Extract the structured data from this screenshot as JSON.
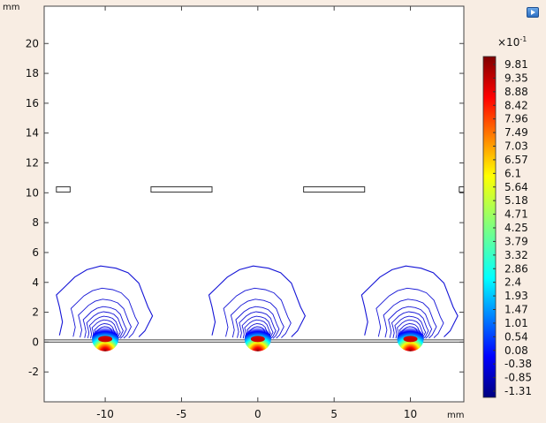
{
  "toolbar": {
    "export_icon": "export-image-icon"
  },
  "chart_data": {
    "type": "contour",
    "x_unit": "mm",
    "y_unit": "mm",
    "xlim": [
      -14,
      13.5
    ],
    "ylim": [
      -4,
      22.5
    ],
    "x_ticks": [
      -10,
      -5,
      0,
      5,
      10
    ],
    "y_ticks": [
      -2,
      0,
      2,
      4,
      6,
      8,
      10,
      12,
      14,
      16,
      18,
      20
    ],
    "colorbar": {
      "multiplier": "×10",
      "exponent": "-1",
      "min": -1.31,
      "max": 9.81,
      "tick_labels": [
        "9.81",
        "9.35",
        "8.88",
        "8.42",
        "7.96",
        "7.49",
        "7.03",
        "6.57",
        "6.1",
        "5.64",
        "5.18",
        "4.71",
        "4.25",
        "3.79",
        "3.32",
        "2.86",
        "2.4",
        "1.93",
        "1.47",
        "1.01",
        "0.54",
        "0.08",
        "-0.38",
        "-0.85",
        "-1.31"
      ]
    },
    "sources_x": [
      -10,
      0,
      10
    ],
    "electrodes": [
      {
        "x0": -13.2,
        "x1": -12.3,
        "y0": 10.05,
        "y1": 10.4
      },
      {
        "x0": -7,
        "x1": -3,
        "y0": 10.05,
        "y1": 10.4
      },
      {
        "x0": 3,
        "x1": 7,
        "y0": 10.05,
        "y1": 10.4
      },
      {
        "x0": 13.2,
        "x1": 13.5,
        "y0": 10.05,
        "y1": 10.4
      }
    ],
    "substrate": {
      "y_top": 0.15,
      "y_bottom": 0.0
    }
  }
}
